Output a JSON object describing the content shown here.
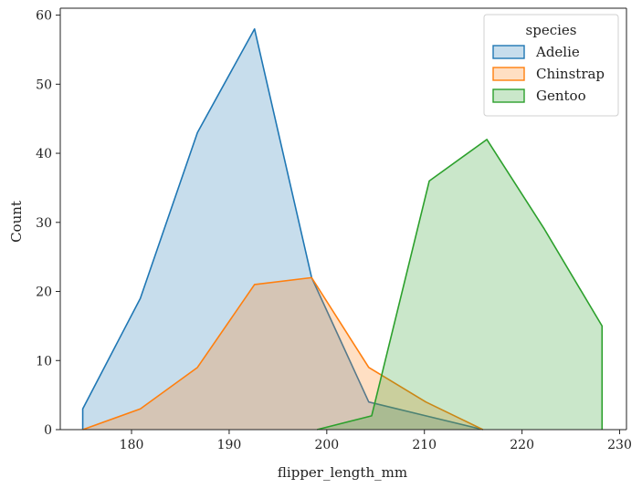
{
  "chart_data": {
    "type": "area",
    "xlabel": "flipper_length_mm",
    "ylabel": "Count",
    "xlim": [
      172.7,
      230.7
    ],
    "ylim": [
      0,
      61
    ],
    "x_ticks": [
      180,
      190,
      200,
      210,
      220,
      230
    ],
    "y_ticks": [
      0,
      10,
      20,
      30,
      40,
      50,
      60
    ],
    "grid": false,
    "legend": {
      "title": "species",
      "placement": "top-right",
      "entries": [
        "Adelie",
        "Chinstrap",
        "Gentoo"
      ]
    },
    "series": [
      {
        "name": "Adelie",
        "color": "#1f77b4",
        "points": [
          [
            175.0,
            0
          ],
          [
            175.0,
            3
          ],
          [
            180.9,
            19
          ],
          [
            186.75,
            43
          ],
          [
            192.6,
            58
          ],
          [
            198.45,
            22
          ],
          [
            204.3,
            4
          ],
          [
            210.15,
            2
          ],
          [
            216.0,
            0
          ]
        ]
      },
      {
        "name": "Chinstrap",
        "color": "#ff7f0e",
        "points": [
          [
            175.0,
            0
          ],
          [
            180.9,
            3
          ],
          [
            186.75,
            9
          ],
          [
            192.6,
            21
          ],
          [
            198.45,
            22
          ],
          [
            204.3,
            9
          ],
          [
            210.15,
            4
          ],
          [
            216.0,
            0
          ]
        ]
      },
      {
        "name": "Gentoo",
        "color": "#2ca02c",
        "points": [
          [
            199.0,
            0
          ],
          [
            204.6,
            2
          ],
          [
            210.5,
            36
          ],
          [
            216.4,
            42
          ],
          [
            222.3,
            29
          ],
          [
            228.2,
            15
          ],
          [
            228.2,
            0
          ]
        ]
      }
    ]
  }
}
